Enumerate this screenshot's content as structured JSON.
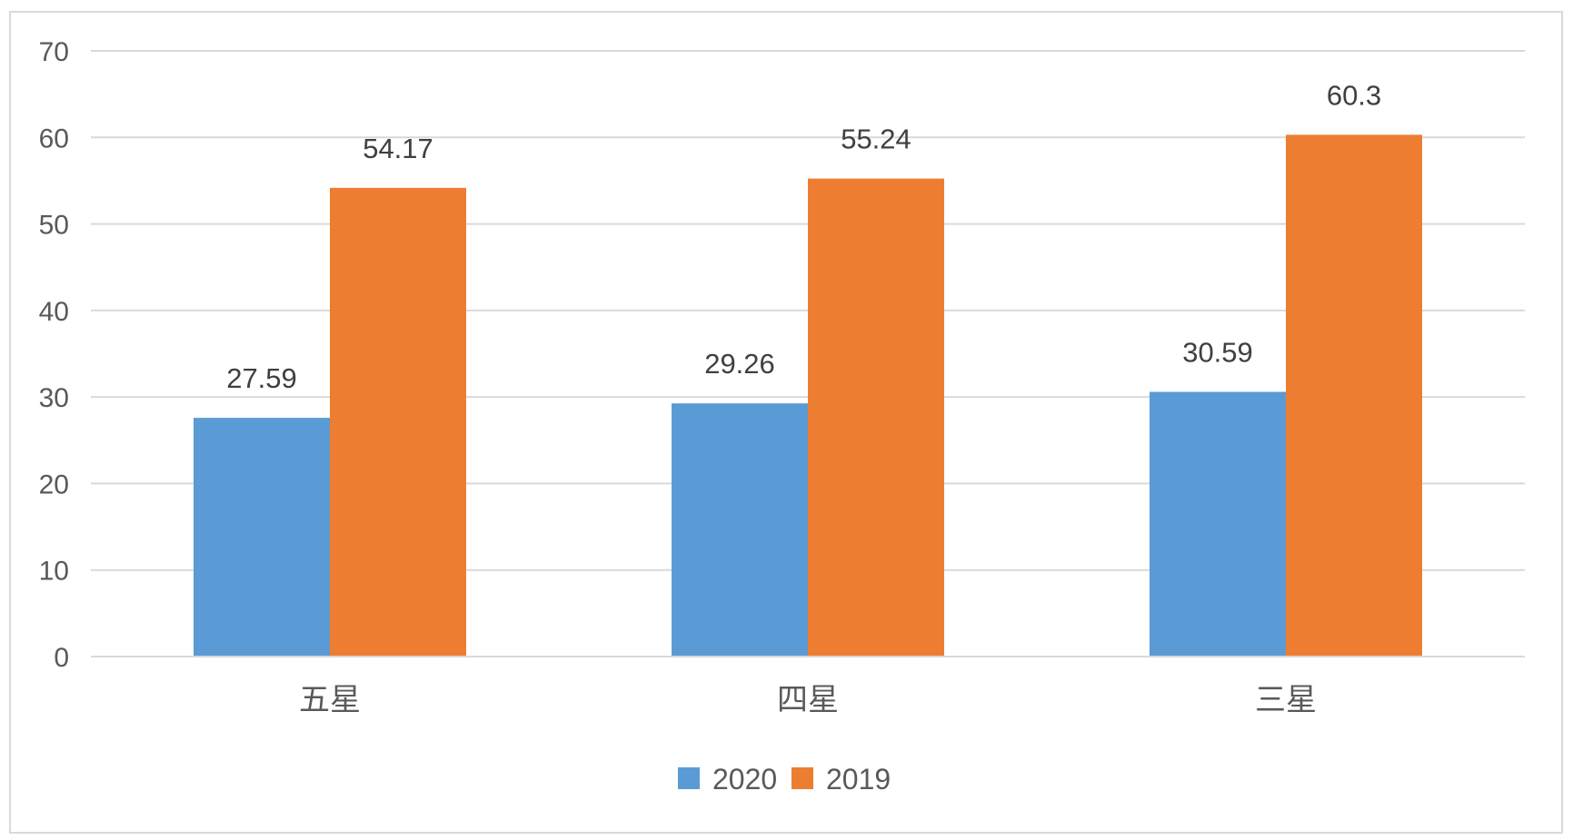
{
  "chart_data": {
    "type": "bar",
    "categories": [
      "五星",
      "四星",
      "三星"
    ],
    "series": [
      {
        "name": "2020",
        "color": "#5B9BD5",
        "values": [
          27.59,
          29.26,
          30.59
        ]
      },
      {
        "name": "2019",
        "color": "#ED7D31",
        "values": [
          54.17,
          55.24,
          60.3
        ]
      }
    ],
    "value_labels": [
      [
        "27.59",
        "29.26",
        "30.59"
      ],
      [
        "54.17",
        "55.24",
        "60.3"
      ]
    ],
    "title": "",
    "xlabel": "",
    "ylabel": "",
    "ylim": [
      0,
      70
    ],
    "yticks": [
      0,
      10,
      20,
      30,
      40,
      50,
      60,
      70
    ],
    "ytick_labels": [
      "0",
      "10",
      "20",
      "30",
      "40",
      "50",
      "60",
      "70"
    ],
    "grid": true,
    "legend": "bottom-center"
  }
}
